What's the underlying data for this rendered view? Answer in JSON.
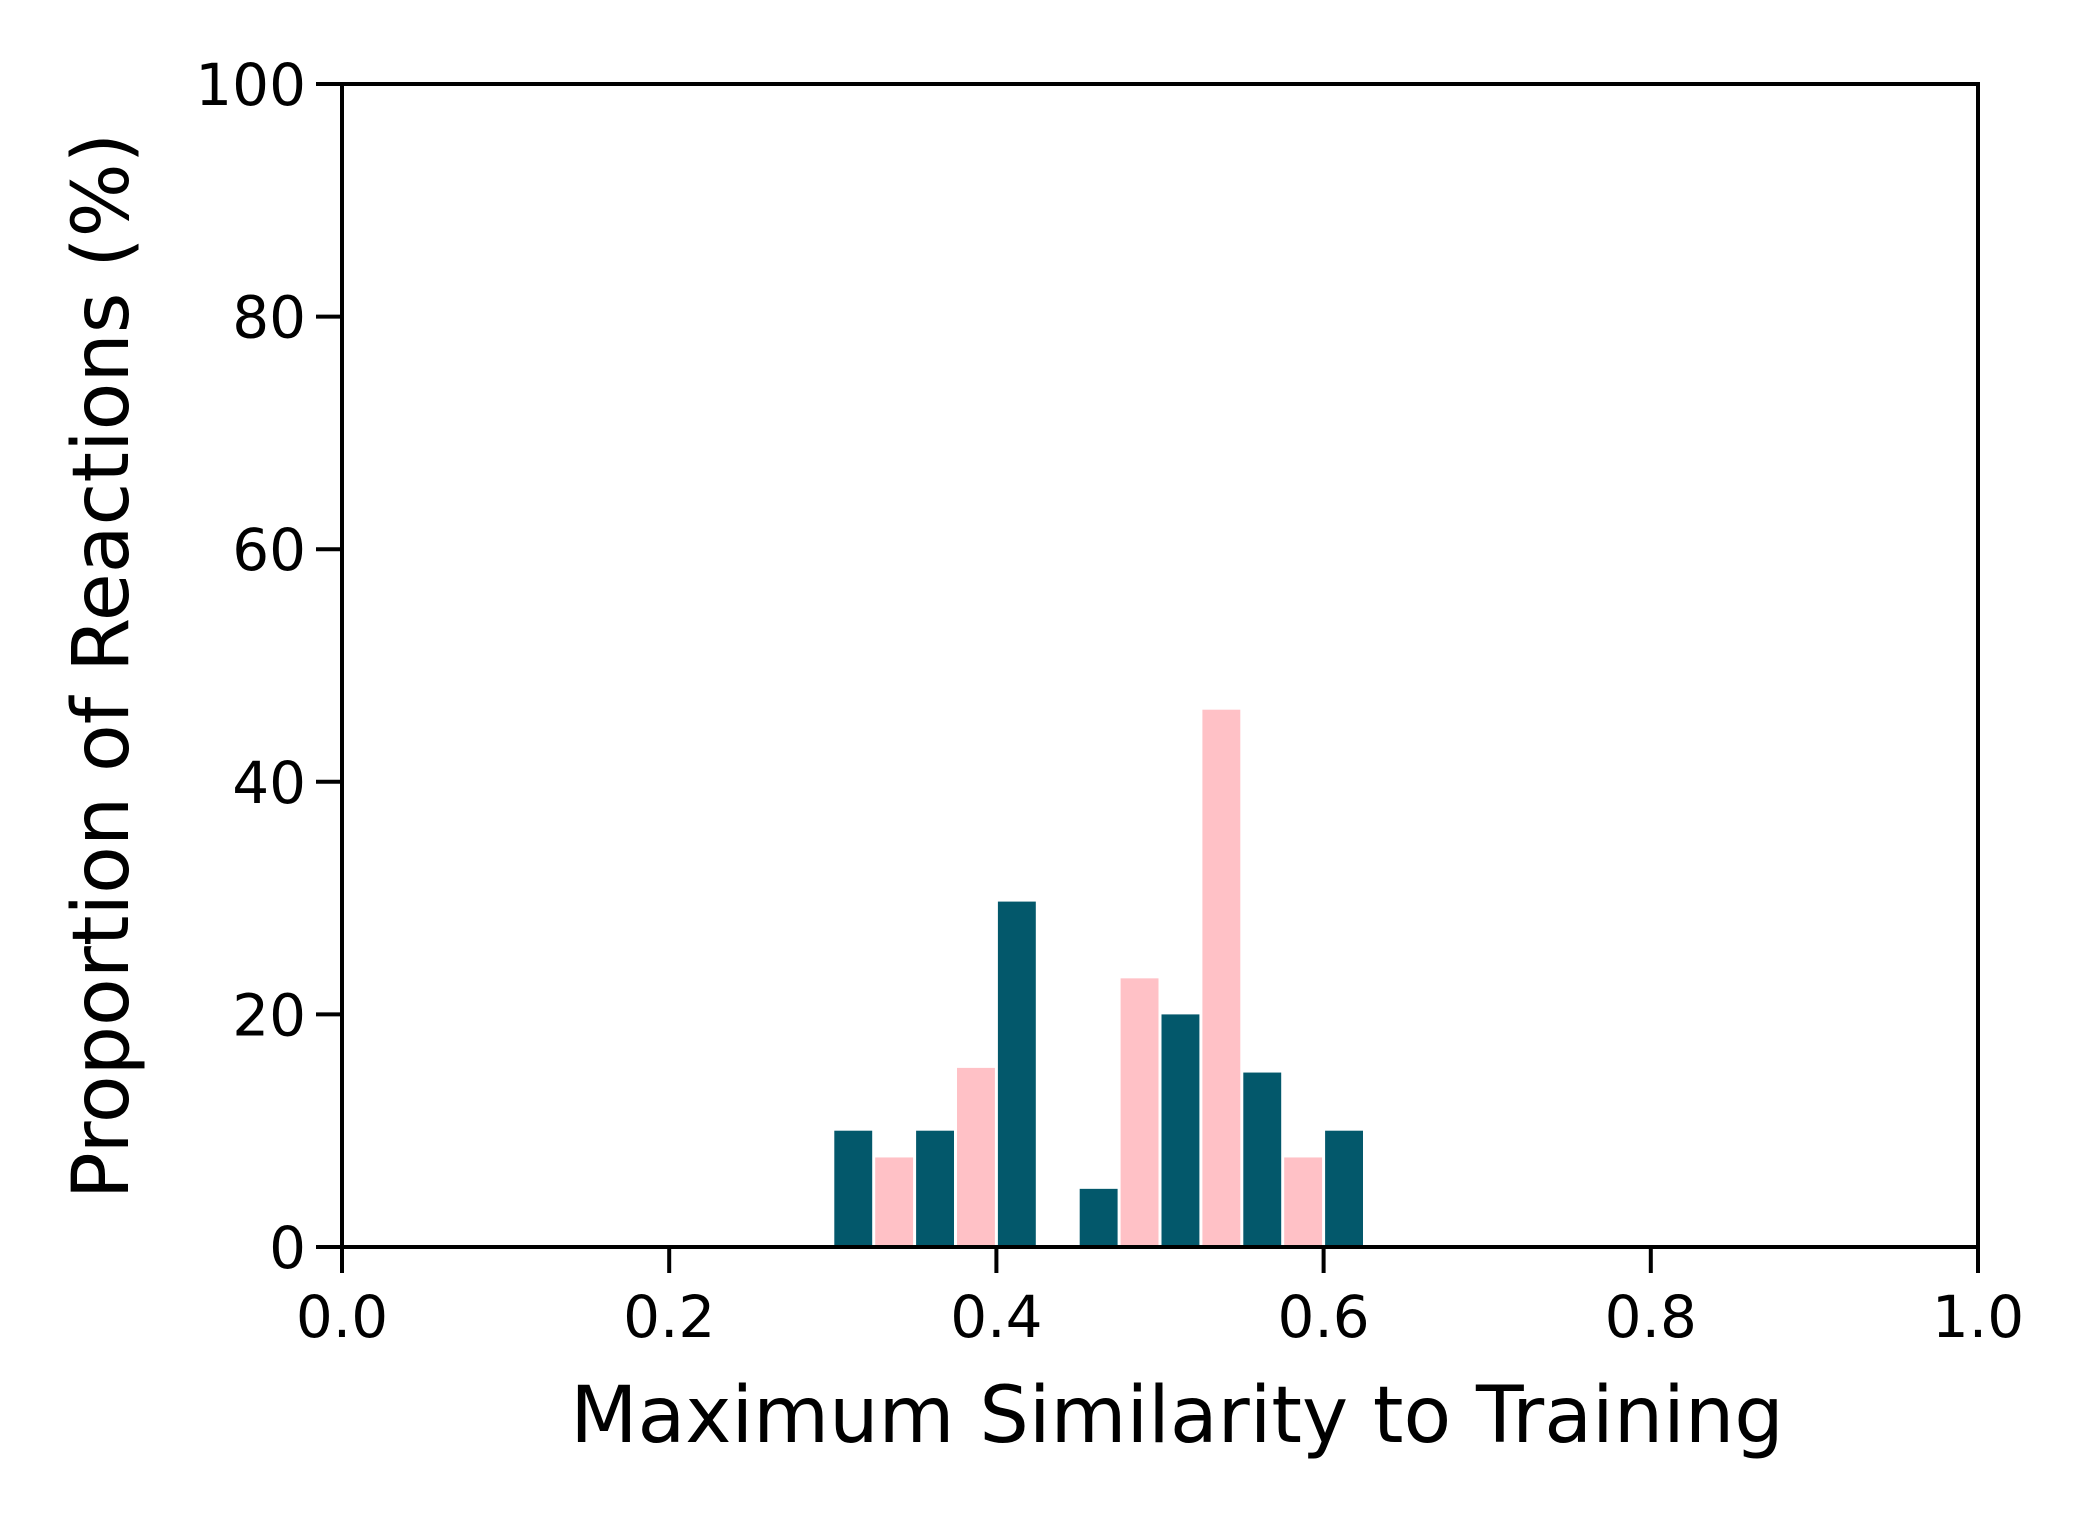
{
  "chart_data": {
    "type": "bar",
    "title": "",
    "xlabel": "Maximum Similarity to Training",
    "ylabel": "Proportion of Reactions (%)",
    "xlim": [
      0.0,
      1.0
    ],
    "ylim": [
      0,
      100
    ],
    "xticks": [
      "0.0",
      "0.2",
      "0.4",
      "0.6",
      "0.8",
      "1.0"
    ],
    "yticks": [
      "0",
      "20",
      "40",
      "60",
      "80",
      "100"
    ],
    "grid": false,
    "legend": "none",
    "bin_width": 0.025,
    "series": [
      {
        "color": "#03586b",
        "bars": [
          {
            "x": 0.3125,
            "value": 10
          },
          {
            "x": 0.3625,
            "value": 10
          },
          {
            "x": 0.4125,
            "value": 29.7
          },
          {
            "x": 0.4625,
            "value": 5
          },
          {
            "x": 0.5125,
            "value": 20
          },
          {
            "x": 0.5625,
            "value": 15
          },
          {
            "x": 0.6125,
            "value": 10
          }
        ]
      },
      {
        "color": "#ffc1c6",
        "bars": [
          {
            "x": 0.3375,
            "value": 7.7
          },
          {
            "x": 0.3875,
            "value": 15.4
          },
          {
            "x": 0.4875,
            "value": 23.1
          },
          {
            "x": 0.5375,
            "value": 46.2
          },
          {
            "x": 0.5875,
            "value": 7.7
          }
        ]
      }
    ]
  }
}
